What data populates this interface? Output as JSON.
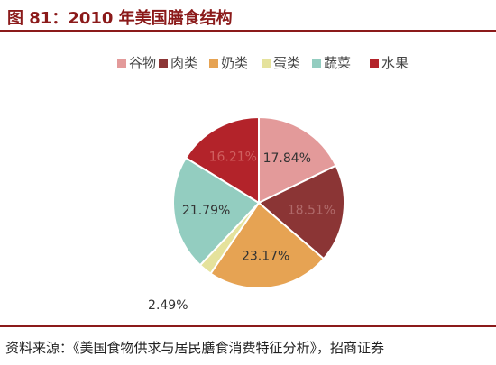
{
  "title": "图 81：2010 年美国膳食结构",
  "source": "资料来源：《美国食物供求与居民膳食消费特征分析》，招商证券",
  "chart_data": {
    "type": "pie",
    "title": "图 81：2010 年美国膳食结构",
    "legend_position": "top",
    "categories": [
      "谷物",
      "肉类",
      "奶类",
      "蛋类",
      "蔬菜",
      "水果"
    ],
    "values": [
      17.84,
      18.51,
      23.17,
      2.49,
      21.79,
      16.21
    ],
    "labels": [
      "17.84%",
      "18.51%",
      "23.17%",
      "2.49%",
      "21.79%",
      "16.21%"
    ],
    "colors": [
      "#e39a9a",
      "#8b3535",
      "#e6a353",
      "#e5e29c",
      "#93cdc0",
      "#b3232a"
    ],
    "label_colors": [
      "#333333",
      "#b06a6a",
      "#333333",
      "#333333",
      "#333333",
      "#d06060"
    ]
  }
}
